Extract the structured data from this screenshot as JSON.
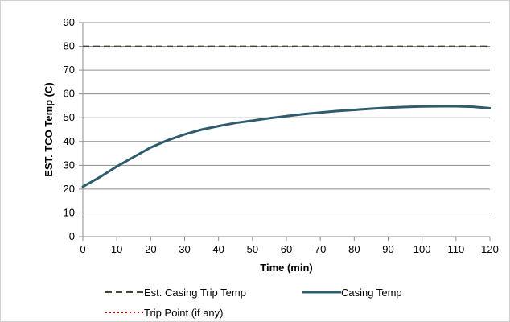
{
  "chart_data": {
    "type": "line",
    "title": "",
    "xlabel": "Time (min)",
    "ylabel": "EST. TCO Temp (C)",
    "xlim": [
      0,
      120
    ],
    "ylim": [
      0,
      90
    ],
    "xticks": [
      0,
      10,
      20,
      30,
      40,
      50,
      60,
      70,
      80,
      90,
      100,
      110,
      120
    ],
    "yticks": [
      0,
      10,
      20,
      30,
      40,
      50,
      60,
      70,
      80,
      90
    ],
    "grid": "horizontal",
    "legend_position": "bottom",
    "series": [
      {
        "name": "Est. Casing Trip Temp",
        "style": "dashed",
        "color": "#4a4631",
        "x": [
          0,
          120
        ],
        "y": [
          80,
          80
        ]
      },
      {
        "name": "Casing Temp",
        "style": "solid",
        "color": "#2e5c6e",
        "x": [
          0,
          5,
          10,
          15,
          20,
          25,
          30,
          35,
          40,
          45,
          50,
          55,
          60,
          65,
          70,
          75,
          80,
          85,
          90,
          95,
          100,
          105,
          110,
          115,
          120
        ],
        "y": [
          21,
          25,
          29.5,
          33.5,
          37.5,
          40.5,
          43,
          45,
          46.5,
          47.8,
          48.8,
          49.8,
          50.7,
          51.5,
          52.2,
          52.8,
          53.3,
          53.8,
          54.2,
          54.5,
          54.7,
          54.8,
          54.8,
          54.6,
          54
        ]
      },
      {
        "name": "Trip Point (if any)",
        "style": "dotted",
        "color": "#c00000",
        "x": [],
        "y": []
      }
    ]
  }
}
